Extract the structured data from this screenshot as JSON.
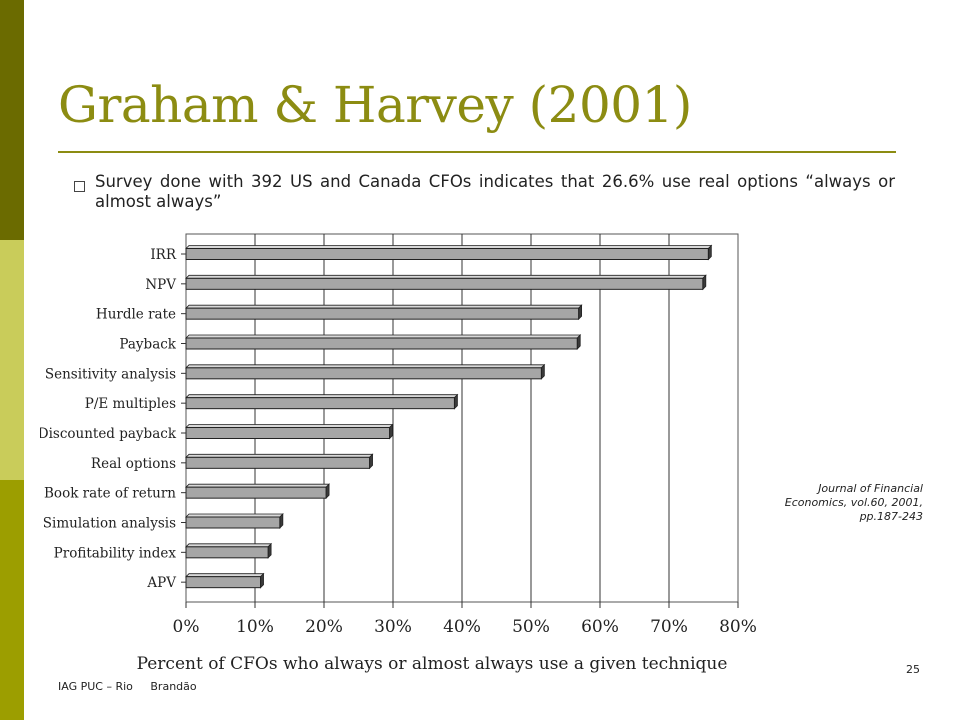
{
  "slide": {
    "title": "Graham & Harvey (2001)",
    "bullet": "Survey done with 392 US and Canada CFOs indicates that 26.6% use real options “always or almost always”",
    "source": "Journal of Financial Economics, vol.60, 2001, pp.187-243",
    "footer_org": "IAG PUC – Rio",
    "footer_author": "Brandão",
    "page_number": "25",
    "colors": {
      "title": "#8c8c12",
      "bar": "#a6a6a6",
      "sidebar_dark": "#6b6b00",
      "sidebar_light": "#c9cc5a",
      "sidebar_mid": "#9c9e00"
    }
  },
  "chart_data": {
    "type": "bar",
    "orientation": "horizontal",
    "categories": [
      "IRR",
      "NPV",
      "Hurdle rate",
      "Payback",
      "Sensitivity analysis",
      "P/E multiples",
      "Discounted payback",
      "Real options",
      "Book rate of return",
      "Simulation analysis",
      "Profitability index",
      "APV"
    ],
    "values": [
      75.7,
      74.9,
      56.9,
      56.7,
      51.5,
      38.9,
      29.5,
      26.6,
      20.3,
      13.6,
      11.9,
      10.8
    ],
    "xlabel": "Percent of CFOs who always or almost always use a given technique",
    "ylabel": "",
    "xlim": [
      0,
      80
    ],
    "xticks": [
      "0%",
      "10%",
      "20%",
      "30%",
      "40%",
      "50%",
      "60%",
      "70%",
      "80%"
    ],
    "grid": true
  }
}
